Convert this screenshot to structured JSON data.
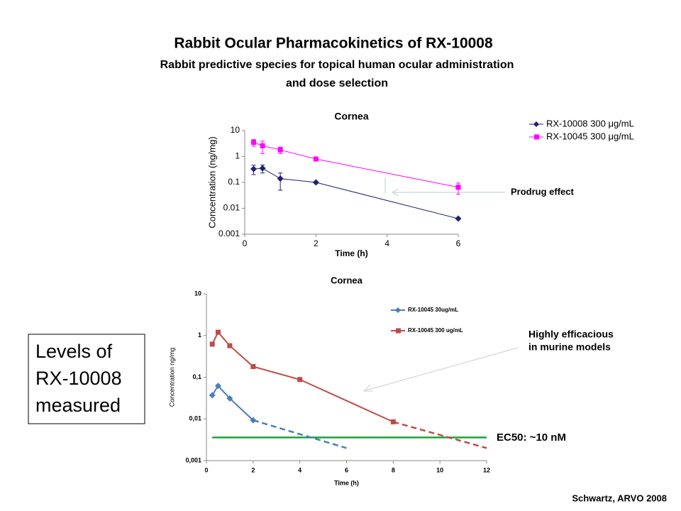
{
  "slide": {
    "title": "Rabbit Ocular Pharmacokinetics of RX-10008",
    "subtitle_lines": [
      "Rabbit predictive species for topical human ocular administration",
      "and dose selection"
    ],
    "box_lines": [
      "Levels of",
      "RX-10008",
      "measured"
    ],
    "citation": "Schwartz, ARVO 2008"
  },
  "chart_data": [
    {
      "type": "line",
      "title": "Cornea",
      "x_label": "Time (h)",
      "y_label": "Concentration (ng/mg)",
      "log_y": true,
      "xlim": [
        0,
        6
      ],
      "xticks": [
        0,
        2,
        4,
        6
      ],
      "ylim": [
        0.001,
        10
      ],
      "yticks": [
        10,
        1,
        0.1,
        0.01,
        0.001
      ],
      "series": [
        {
          "name": "RX-10008 300 μg/mL",
          "color": "#1f1f78",
          "marker": "diamond",
          "x": [
            0.25,
            0.5,
            1,
            2,
            6
          ],
          "values": [
            0.33,
            0.35,
            0.14,
            0.1,
            0.004
          ],
          "errors": [
            0.13,
            0.12,
            0.09,
            0,
            0
          ]
        },
        {
          "name": "RX-10045 300 μg/mL",
          "color": "#ff00ff",
          "marker": "square",
          "x": [
            0.25,
            0.5,
            1,
            2,
            6
          ],
          "values": [
            3.5,
            2.6,
            1.8,
            0.8,
            0.065
          ],
          "errors": [
            1,
            1.3,
            0.5,
            0,
            0.03
          ]
        }
      ],
      "annotations": [
        {
          "text_lines": [
            "Prodrug effect"
          ]
        }
      ]
    },
    {
      "type": "line",
      "title": "Cornea",
      "x_label": "Time (h)",
      "y_label": "Concentration ng/mg",
      "log_y": true,
      "xlim": [
        0,
        12
      ],
      "xticks": [
        0,
        2,
        4,
        6,
        8,
        10,
        12
      ],
      "ylim": [
        0.001,
        10
      ],
      "yticks": [
        10,
        1,
        {
          "value": 0.1,
          "label": "0,1"
        },
        {
          "value": 0.01,
          "label": "0,01"
        },
        {
          "value": 0.001,
          "label": "0,001"
        }
      ],
      "series": [
        {
          "name": "RX-10045 30ug/mL",
          "color": "#4a7ebb",
          "marker": "diamond",
          "x": [
            0.25,
            0.5,
            1,
            2
          ],
          "values": [
            0.037,
            0.062,
            0.031,
            0.0093
          ],
          "extrapolation": {
            "x": [
              2,
              6
            ],
            "values": [
              0.0093,
              0.002
            ]
          }
        },
        {
          "name": "RX-10045 300 ug/mL",
          "color": "#be4b48",
          "marker": "square",
          "x": [
            0.25,
            0.5,
            1,
            2,
            4,
            8
          ],
          "values": [
            0.62,
            1.2,
            0.57,
            0.18,
            0.088,
            0.0085
          ],
          "extrapolation": {
            "x": [
              8,
              12
            ],
            "values": [
              0.0085,
              0.002
            ]
          }
        }
      ],
      "reference_line": {
        "value": 0.0036,
        "xlim": [
          0.25,
          12
        ],
        "color": "#1aa33a",
        "label": "EC50: ~10 nM"
      },
      "annotations": [
        {
          "text_lines": [
            "Highly efficacious",
            "in murine models"
          ]
        }
      ]
    }
  ]
}
